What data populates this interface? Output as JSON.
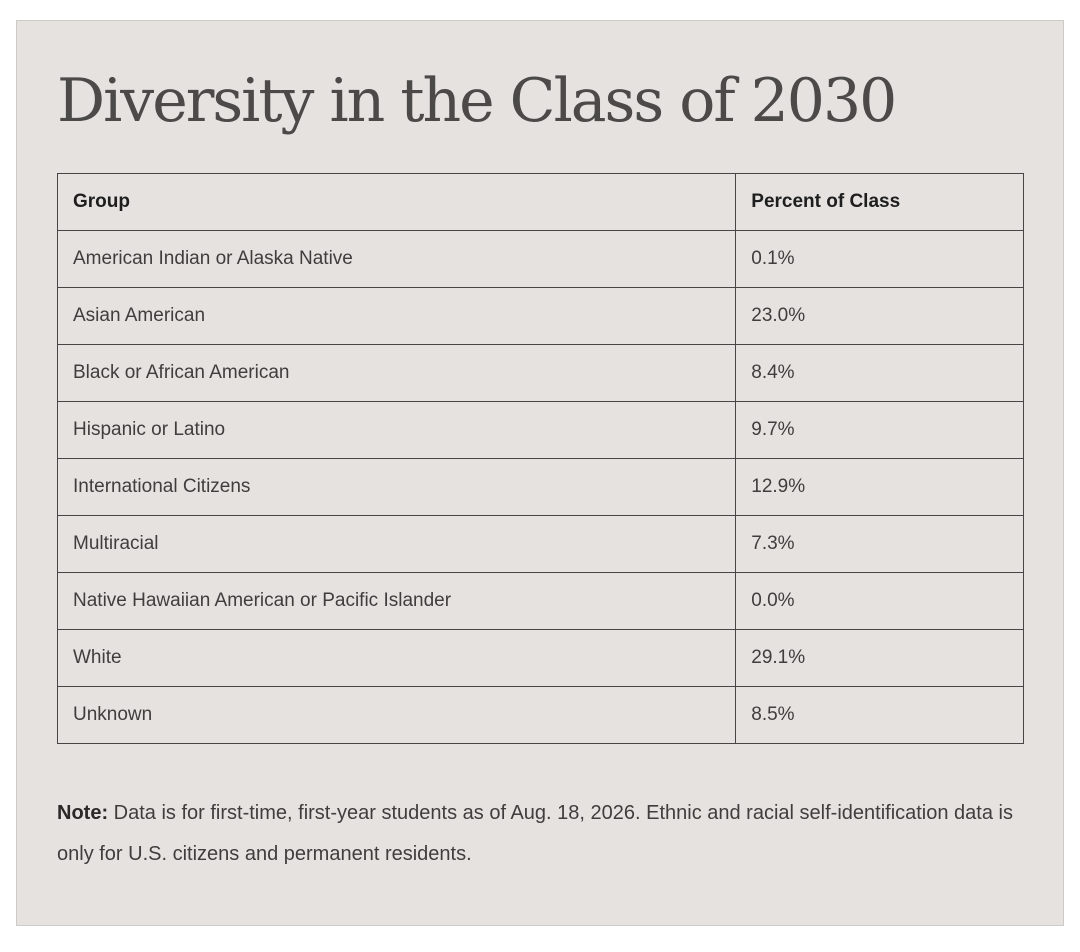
{
  "title": "Diversity in the Class of 2030",
  "table": {
    "headers": [
      "Group",
      "Percent of Class"
    ],
    "rows": [
      {
        "group": "American Indian or Alaska Native",
        "percent": "0.1%"
      },
      {
        "group": "Asian American",
        "percent": "23.0%"
      },
      {
        "group": "Black or African American",
        "percent": "8.4%"
      },
      {
        "group": "Hispanic or Latino",
        "percent": "9.7%"
      },
      {
        "group": "International Citizens",
        "percent": "12.9%"
      },
      {
        "group": "Multiracial",
        "percent": "7.3%"
      },
      {
        "group": "Native Hawaiian American or Pacific Islander",
        "percent": "0.0%"
      },
      {
        "group": "White",
        "percent": "29.1%"
      },
      {
        "group": "Unknown",
        "percent": "8.5%"
      }
    ]
  },
  "note": {
    "label": "Note:",
    "text": " Data is for first-time, first-year students as of Aug. 18, 2026. Ethnic and racial self-identification data is only for U.S. citizens and permanent residents."
  },
  "colors": {
    "background": "#e5e2df",
    "title": "#4b4a48",
    "text": "#3f3e3c",
    "border": "#474644"
  }
}
